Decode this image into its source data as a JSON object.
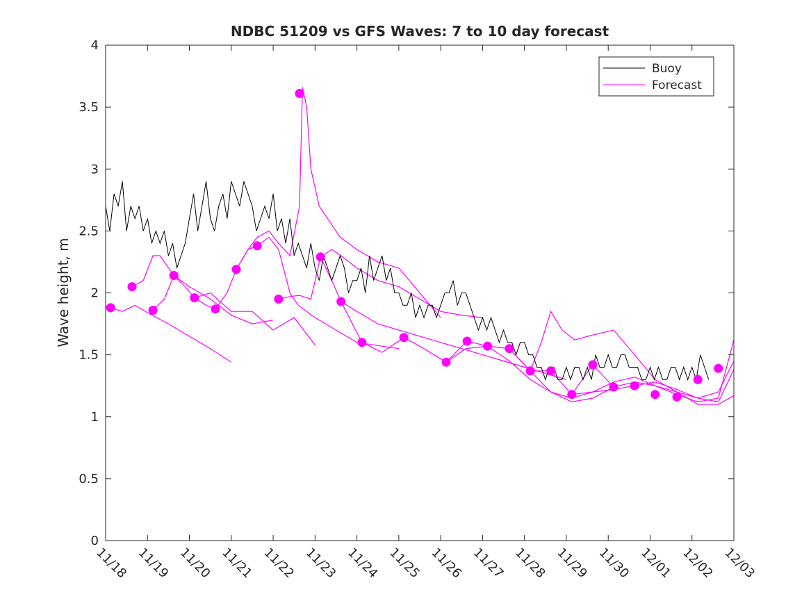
{
  "chart_data": {
    "type": "line",
    "title": "NDBC 51209 vs GFS Waves: 7 to 10 day forecast",
    "xlabel": "",
    "ylabel": "Wave height, m",
    "xlim_days": [
      0,
      15
    ],
    "ylim": [
      0,
      4
    ],
    "x_tick_labels": [
      "11/18",
      "11/19",
      "11/20",
      "11/21",
      "11/22",
      "11/23",
      "11/24",
      "11/25",
      "11/26",
      "11/27",
      "11/28",
      "11/29",
      "11/30",
      "12/01",
      "12/02",
      "12/03"
    ],
    "y_ticks": [
      0,
      0.5,
      1,
      1.5,
      2,
      2.5,
      3,
      3.5,
      4
    ],
    "y_tick_labels": [
      "0",
      "0.5",
      "1",
      "1.5",
      "2",
      "2.5",
      "3",
      "3.5",
      "4"
    ],
    "grid": false,
    "legend": {
      "placement": "top-right",
      "entries": [
        {
          "label": "Buoy",
          "color": "#000000"
        },
        {
          "label": "Forecast",
          "color": "#ff00ff"
        }
      ]
    },
    "colors": {
      "buoy": "#000000",
      "forecast": "#ff00ff"
    },
    "buoy": {
      "name": "Buoy",
      "x_days": [
        0,
        0.1,
        0.2,
        0.3,
        0.4,
        0.5,
        0.6,
        0.7,
        0.8,
        0.9,
        1.0,
        1.1,
        1.2,
        1.3,
        1.4,
        1.5,
        1.6,
        1.7,
        1.8,
        1.9,
        2.0,
        2.1,
        2.2,
        2.3,
        2.4,
        2.5,
        2.6,
        2.7,
        2.8,
        2.9,
        3.0,
        3.1,
        3.2,
        3.3,
        3.4,
        3.5,
        3.6,
        3.7,
        3.8,
        3.9,
        4.0,
        4.1,
        4.2,
        4.3,
        4.4,
        4.5,
        4.6,
        4.7,
        4.8,
        4.9,
        5.0,
        5.1,
        5.2,
        5.3,
        5.4,
        5.5,
        5.6,
        5.7,
        5.8,
        5.9,
        6.0,
        6.1,
        6.2,
        6.3,
        6.4,
        6.5,
        6.6,
        6.7,
        6.8,
        6.9,
        7.0,
        7.1,
        7.2,
        7.3,
        7.4,
        7.5,
        7.6,
        7.7,
        7.8,
        7.9,
        8.0,
        8.1,
        8.2,
        8.3,
        8.4,
        8.5,
        8.6,
        8.7,
        8.8,
        8.9,
        9.0,
        9.1,
        9.2,
        9.3,
        9.4,
        9.5,
        9.6,
        9.7,
        9.8,
        9.9,
        10.0,
        10.1,
        10.2,
        10.3,
        10.4,
        10.5,
        10.6,
        10.7,
        10.8,
        10.9,
        11.0,
        11.1,
        11.2,
        11.3,
        11.4,
        11.5,
        11.6,
        11.7,
        11.8,
        11.9,
        12.0,
        12.1,
        12.2,
        12.3,
        12.4,
        12.5,
        12.6,
        12.7,
        12.8,
        12.9,
        13.0,
        13.1,
        13.2,
        13.3,
        13.4,
        13.5,
        13.6,
        13.7,
        13.8,
        13.9,
        14.0,
        14.1,
        14.2,
        14.3,
        14.4
      ],
      "values": [
        2.7,
        2.5,
        2.8,
        2.7,
        2.9,
        2.5,
        2.7,
        2.6,
        2.7,
        2.5,
        2.6,
        2.4,
        2.5,
        2.4,
        2.5,
        2.3,
        2.4,
        2.2,
        2.3,
        2.4,
        2.6,
        2.8,
        2.5,
        2.7,
        2.9,
        2.6,
        2.5,
        2.7,
        2.8,
        2.6,
        2.9,
        2.8,
        2.7,
        2.9,
        2.8,
        2.7,
        2.5,
        2.6,
        2.7,
        2.6,
        2.8,
        2.5,
        2.6,
        2.4,
        2.6,
        2.3,
        2.4,
        2.3,
        2.2,
        2.4,
        2.2,
        2.1,
        2.3,
        2.2,
        2.1,
        2.2,
        2.3,
        2.2,
        2.0,
        2.1,
        2.1,
        2.2,
        2.0,
        2.3,
        2.1,
        2.2,
        2.3,
        2.1,
        2.2,
        2.0,
        2.0,
        1.9,
        1.9,
        2.0,
        1.8,
        1.9,
        1.8,
        1.9,
        1.9,
        1.8,
        1.9,
        2.0,
        2.0,
        2.1,
        1.9,
        2.0,
        2.0,
        1.9,
        1.8,
        1.7,
        1.8,
        1.7,
        1.8,
        1.7,
        1.6,
        1.7,
        1.6,
        1.6,
        1.5,
        1.6,
        1.6,
        1.5,
        1.5,
        1.4,
        1.4,
        1.3,
        1.4,
        1.4,
        1.3,
        1.3,
        1.4,
        1.3,
        1.4,
        1.4,
        1.3,
        1.4,
        1.3,
        1.5,
        1.4,
        1.4,
        1.5,
        1.4,
        1.4,
        1.5,
        1.5,
        1.4,
        1.4,
        1.4,
        1.3,
        1.3,
        1.4,
        1.3,
        1.4,
        1.3,
        1.3,
        1.4,
        1.4,
        1.3,
        1.4,
        1.3,
        1.4,
        1.3,
        1.5,
        1.4,
        1.3
      ]
    },
    "forecast_markers": {
      "name": "Forecast",
      "x_days": [
        0.12,
        0.63,
        1.13,
        1.63,
        2.12,
        2.62,
        3.12,
        3.62,
        4.13,
        4.63,
        5.13,
        5.62,
        6.12,
        7.12,
        8.13,
        8.63,
        9.12,
        9.64,
        10.14,
        10.63,
        11.13,
        11.63,
        12.13,
        12.63,
        13.12,
        13.64,
        14.14,
        14.63
      ],
      "values": [
        1.88,
        2.05,
        1.86,
        2.14,
        1.96,
        1.87,
        2.19,
        2.38,
        1.95,
        3.61,
        2.29,
        1.93,
        1.6,
        1.64,
        1.44,
        1.61,
        1.57,
        1.55,
        1.37,
        1.37,
        1.18,
        1.42,
        1.24,
        1.25,
        1.18,
        1.16,
        1.3,
        1.39
      ]
    },
    "forecast_lines": [
      {
        "x_days": [
          0.12,
          0.4,
          0.7,
          1.0,
          1.5,
          2.0,
          2.5,
          3.0
        ],
        "values": [
          1.88,
          1.85,
          1.9,
          1.84,
          1.75,
          1.65,
          1.55,
          1.44
        ]
      },
      {
        "x_days": [
          0.63,
          0.9,
          1.13,
          1.3,
          1.63,
          2.0,
          2.5,
          3.0,
          3.5,
          4.0
        ],
        "values": [
          2.05,
          2.1,
          2.3,
          2.3,
          2.14,
          2.05,
          1.95,
          1.82,
          1.75,
          1.78
        ]
      },
      {
        "x_days": [
          1.13,
          1.4,
          1.63,
          1.9,
          2.12,
          2.5,
          3.0,
          3.5,
          4.0,
          4.5,
          5.0
        ],
        "values": [
          1.86,
          1.95,
          2.14,
          2.05,
          1.96,
          2.0,
          1.85,
          1.85,
          1.7,
          1.8,
          1.58
        ]
      },
      {
        "x_days": [
          2.12,
          2.4,
          2.62,
          2.9,
          3.12,
          3.4,
          3.62,
          3.9,
          4.13,
          4.4,
          4.6,
          5.0,
          5.5,
          6.0,
          7.0
        ],
        "values": [
          1.96,
          1.9,
          1.87,
          2.0,
          2.19,
          2.35,
          2.38,
          2.45,
          2.35,
          2.0,
          1.9,
          1.8,
          1.7,
          1.6,
          1.55
        ]
      },
      {
        "x_days": [
          3.12,
          3.4,
          3.62,
          3.9,
          4.13,
          4.4,
          4.63,
          4.7,
          4.8,
          4.9,
          5.1,
          5.3,
          5.6,
          6.0,
          6.5,
          7.0,
          7.5,
          8.0
        ],
        "values": [
          2.19,
          2.35,
          2.45,
          2.5,
          2.4,
          2.3,
          2.7,
          3.66,
          3.5,
          3.0,
          2.7,
          2.6,
          2.45,
          2.35,
          2.25,
          2.2,
          2.0,
          1.8
        ]
      },
      {
        "x_days": [
          4.13,
          4.4,
          4.63,
          4.9,
          5.13,
          5.4,
          5.62,
          6.0,
          6.5,
          7.0,
          7.5,
          8.0,
          8.5,
          9.0
        ],
        "values": [
          1.95,
          1.97,
          1.98,
          1.95,
          2.29,
          2.35,
          2.3,
          2.2,
          2.1,
          2.05,
          1.95,
          1.85,
          1.82,
          1.8
        ]
      },
      {
        "x_days": [
          5.13,
          5.4,
          5.62,
          6.0,
          6.5,
          7.0,
          7.5,
          8.0,
          8.5,
          9.0,
          9.5,
          10.0,
          10.5,
          11.0
        ],
        "values": [
          2.29,
          2.1,
          1.93,
          1.85,
          1.75,
          1.7,
          1.65,
          1.6,
          1.55,
          1.5,
          1.45,
          1.4,
          1.35,
          1.3
        ]
      },
      {
        "x_days": [
          5.62,
          6.12,
          6.6,
          7.12,
          7.6,
          8.13,
          8.6,
          9.12,
          9.64,
          10.14,
          10.63,
          11.13,
          11.63,
          12.13
        ],
        "values": [
          1.93,
          1.6,
          1.52,
          1.64,
          1.55,
          1.44,
          1.55,
          1.57,
          1.55,
          1.37,
          1.37,
          1.18,
          1.42,
          1.24
        ]
      },
      {
        "x_days": [
          8.13,
          8.63,
          9.12,
          9.64,
          10.14,
          10.4,
          10.63,
          10.9,
          11.2,
          11.63,
          12.13,
          12.63,
          13.12,
          13.64,
          14.14,
          14.63,
          15.0
        ],
        "values": [
          1.44,
          1.61,
          1.57,
          1.55,
          1.37,
          1.6,
          1.85,
          1.7,
          1.62,
          1.66,
          1.7,
          1.5,
          1.3,
          1.2,
          1.15,
          1.2,
          1.45
        ]
      },
      {
        "x_days": [
          9.12,
          9.64,
          10.14,
          10.63,
          11.13,
          11.63,
          12.13,
          12.63,
          13.12,
          13.64,
          14.14,
          14.63,
          15.0
        ],
        "values": [
          1.57,
          1.45,
          1.3,
          1.2,
          1.15,
          1.2,
          1.28,
          1.32,
          1.25,
          1.18,
          1.12,
          1.15,
          1.62
        ]
      },
      {
        "x_days": [
          10.14,
          10.63,
          11.13,
          11.63,
          12.13,
          12.63,
          13.12,
          13.64,
          14.14,
          14.63,
          15.0
        ],
        "values": [
          1.37,
          1.2,
          1.12,
          1.15,
          1.24,
          1.28,
          1.25,
          1.2,
          1.1,
          1.1,
          1.17
        ]
      },
      {
        "x_days": [
          11.13,
          11.63,
          12.13,
          12.63,
          13.12,
          13.64,
          14.14,
          14.63,
          15.0
        ],
        "values": [
          1.18,
          1.2,
          1.22,
          1.25,
          1.28,
          1.22,
          1.15,
          1.12,
          1.38
        ]
      }
    ]
  }
}
